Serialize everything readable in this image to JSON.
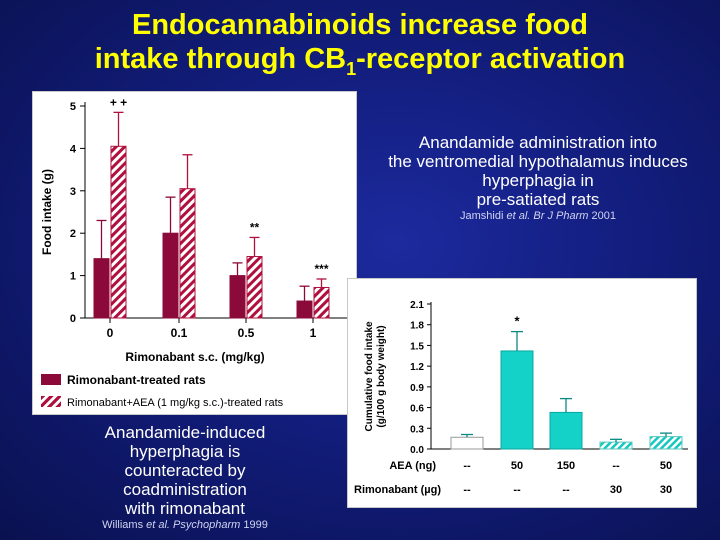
{
  "slide": {
    "title_line1": "Endocannabinoids increase food",
    "title_line2_pre": "intake through CB",
    "title_line2_sub": "1",
    "title_line2_post": "-receptor activation"
  },
  "right_text": {
    "line1": "Anandamide administration into",
    "line2": "the ventromedial hypothalamus induces",
    "line3": "hyperphagia in",
    "line4": "pre-satiated rats",
    "cite_author": "Jamshidi ",
    "cite_etal": "et al.",
    "cite_journal": " Br J Pharm",
    "cite_year": " 2001"
  },
  "left_text": {
    "line1": "Anandamide-induced",
    "line2": "hyperphagia is",
    "line3": "counteracted by",
    "line4": "coadministration",
    "line5": "with rimonabant",
    "cite_author": "Williams ",
    "cite_etal": "et al.",
    "cite_journal": " Psychopharm",
    "cite_year": " 1999"
  },
  "chart_data": [
    {
      "type": "bar",
      "title": "",
      "xlabel": "Rimonabant s.c. (mg/kg)",
      "ylabel": "Food intake (g)",
      "ylim": [
        0,
        5
      ],
      "yticks": [
        "0",
        "1",
        "2",
        "3",
        "4",
        "5"
      ],
      "categories": [
        "0",
        "0.1",
        "0.5",
        "1"
      ],
      "series": [
        {
          "name": "Rimonabant-treated rats",
          "values": [
            1.4,
            2.0,
            1.0,
            0.4
          ],
          "errors": [
            0.9,
            0.85,
            0.3,
            0.35
          ],
          "color": "#8b0a3a",
          "pattern": "solid"
        },
        {
          "name": "Rimonabant+AEA (1 mg/kg s.c.)-treated rats",
          "values": [
            4.05,
            3.05,
            1.45,
            0.72
          ],
          "errors": [
            0.8,
            0.8,
            0.45,
            0.2
          ],
          "color": "#b0103e",
          "pattern": "hatched"
        }
      ],
      "annotations": [
        "+ +",
        "",
        "**",
        "***"
      ],
      "legend_position": "bottom-left"
    },
    {
      "type": "bar",
      "title": "",
      "ylabel_line1": "Cumulative food intake",
      "ylabel_line2": "(g/100 g body weight)",
      "ylim": [
        0,
        2.1
      ],
      "yticks": [
        "0.0",
        "0.3",
        "0.6",
        "0.9",
        "1.2",
        "1.5",
        "1.8",
        "2.1"
      ],
      "row_labels": [
        "AEA (ng)",
        "Rimonabant (µg)"
      ],
      "aea_doses": [
        "--",
        "50",
        "150",
        "--",
        "50"
      ],
      "rimonabant_doses": [
        "--",
        "--",
        "--",
        "30",
        "30"
      ],
      "values": [
        0.17,
        1.42,
        0.53,
        0.1,
        0.18
      ],
      "errors": [
        0.04,
        0.28,
        0.2,
        0.04,
        0.05
      ],
      "annotations": [
        "",
        "*",
        "",
        "",
        ""
      ],
      "colors": [
        "#ffffff",
        "#14d2c8",
        "#14d2c8",
        "#7fe6e0",
        "#7fe6e0"
      ],
      "patterns": [
        "solid",
        "solid",
        "solid",
        "hatched",
        "hatched"
      ]
    }
  ]
}
